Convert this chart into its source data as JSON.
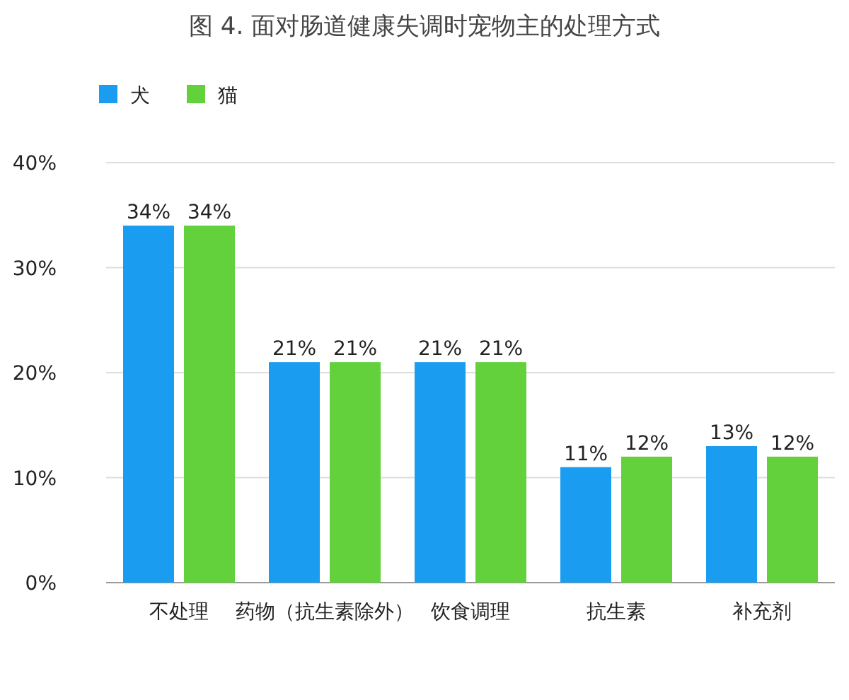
{
  "chart_data": {
    "type": "bar",
    "title": "图 4. 面对肠道健康失调时宠物主的处理方式",
    "categories": [
      "不处理",
      "药物（抗生素除外）",
      "饮食调理",
      "抗生素",
      "补充剂"
    ],
    "series": [
      {
        "name": "犬",
        "color": "#1a9cf0",
        "values": [
          34,
          21,
          21,
          11,
          13
        ],
        "value_labels": [
          "34%",
          "21%",
          "21%",
          "11%",
          "13%"
        ]
      },
      {
        "name": "猫",
        "color": "#62d13c",
        "values": [
          34,
          21,
          21,
          12,
          12
        ],
        "value_labels": [
          "34%",
          "21%",
          "21%",
          "12%",
          "12%"
        ]
      }
    ],
    "ylim": [
      0,
      40
    ],
    "yticks": [
      {
        "value": 0,
        "label": "0%"
      },
      {
        "value": 10,
        "label": "10%"
      },
      {
        "value": 20,
        "label": "20%"
      },
      {
        "value": 30,
        "label": "30%"
      },
      {
        "value": 40,
        "label": "40%"
      }
    ],
    "grid": "y",
    "legend": "top left"
  }
}
